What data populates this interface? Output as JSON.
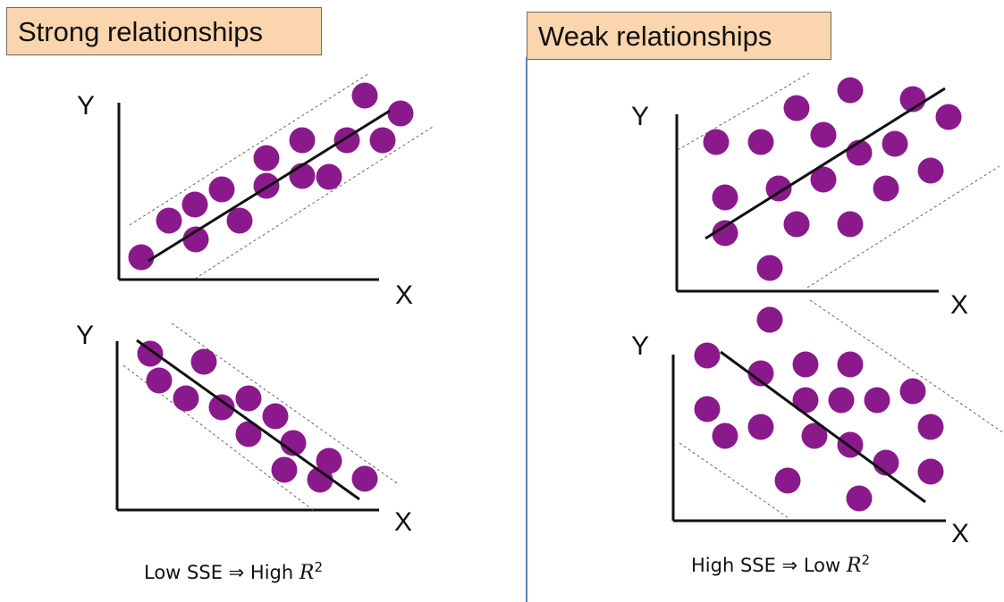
{
  "headings": {
    "strong": "Strong relationships",
    "weak": "Weak relationships"
  },
  "axis_labels": {
    "y": "Y",
    "x": "X"
  },
  "captions": {
    "strong": {
      "prefix": "Low SSE ⇒ High ",
      "r": "R",
      "exp": "2"
    },
    "weak": {
      "prefix": "High SSE ⇒ Low ",
      "r": "R",
      "exp": "2"
    }
  },
  "colors": {
    "point": "#8a1a8b",
    "heading_bg": "#fbd5ad",
    "divider": "#5b83b5",
    "axis": "#111111",
    "band": "#666666"
  },
  "plots": [
    {
      "id": "strong-positive",
      "relationship": "strong",
      "trend": "positive"
    },
    {
      "id": "strong-negative",
      "relationship": "strong",
      "trend": "negative"
    },
    {
      "id": "weak-positive",
      "relationship": "weak",
      "trend": "positive"
    },
    {
      "id": "weak-negative",
      "relationship": "weak",
      "trend": "negative"
    }
  ]
}
